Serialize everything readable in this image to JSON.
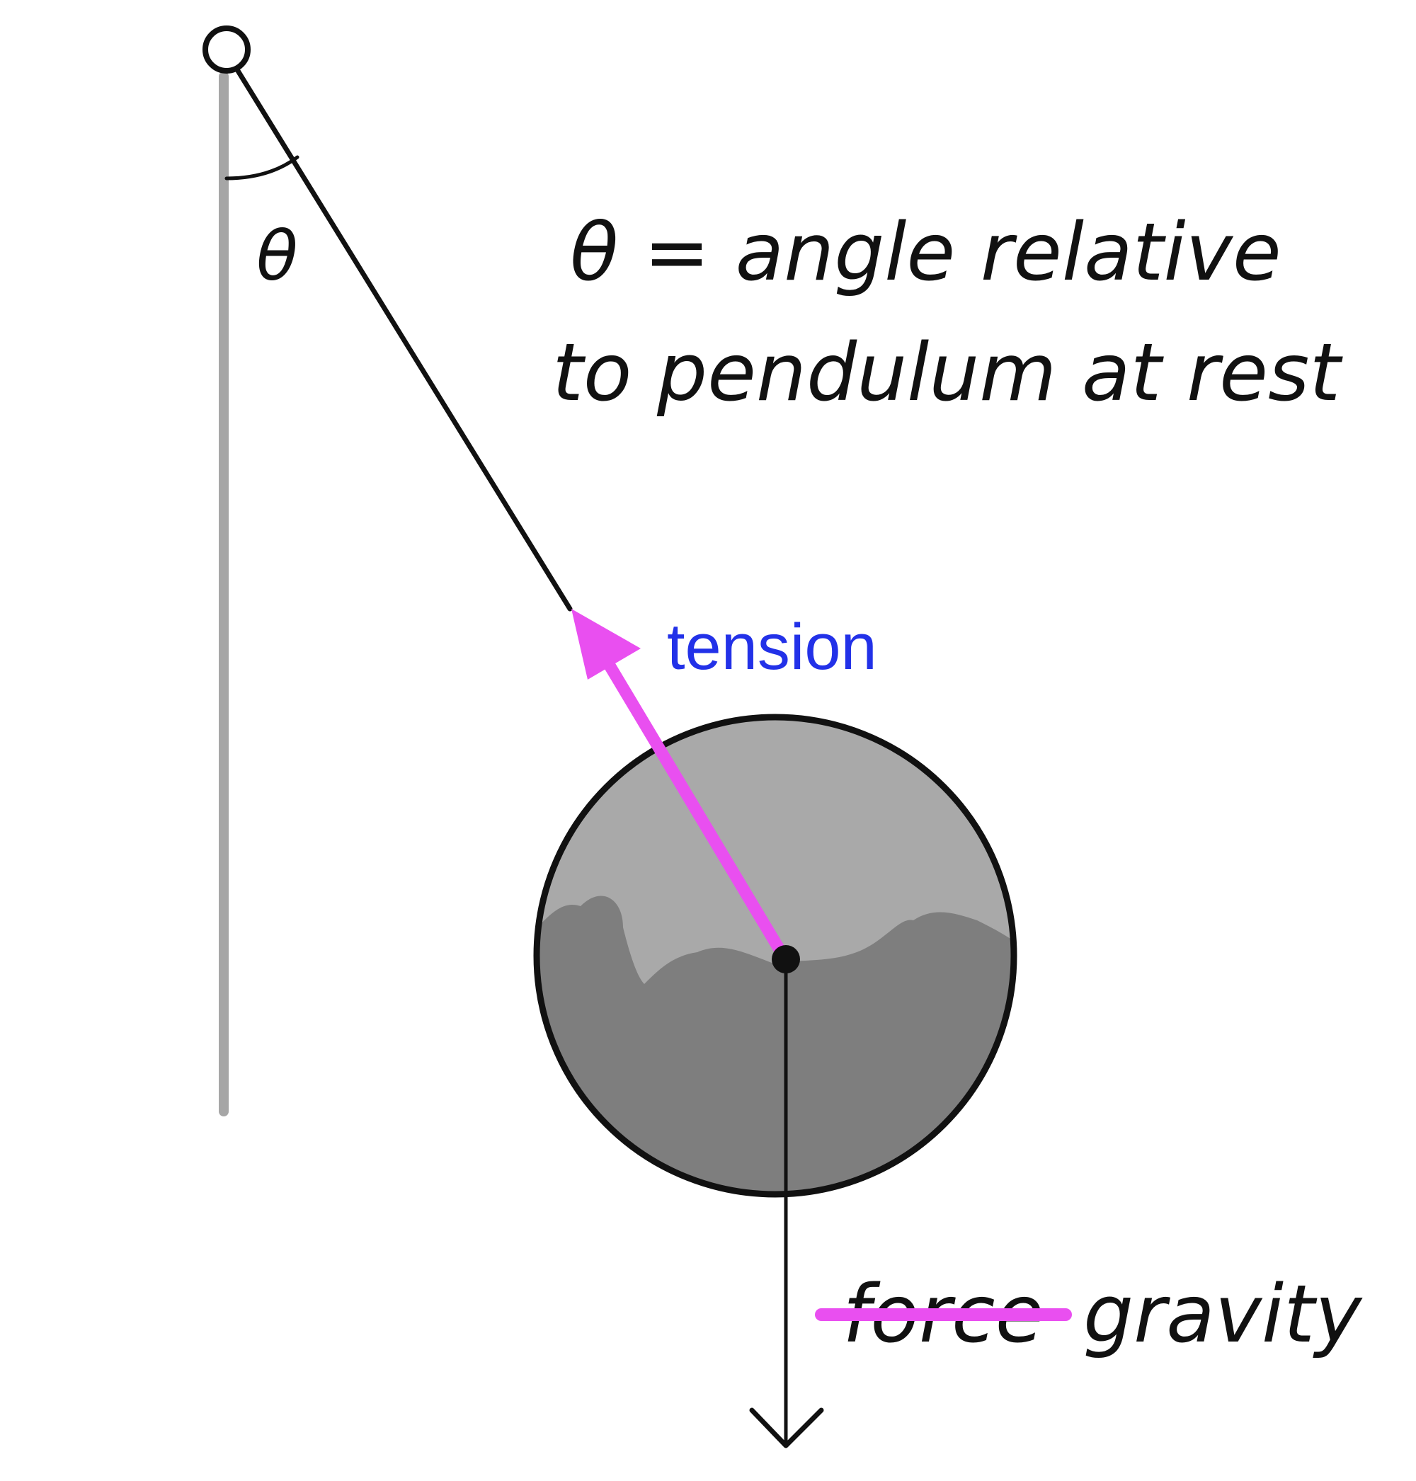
{
  "labels": {
    "theta_symbol": "θ",
    "definition_line1": "θ = angle relative",
    "definition_line2": "to pendulum at rest",
    "tension": "tension",
    "struck_word": "force",
    "gravity": "gravity"
  },
  "colors": {
    "tension_arrow": "#e94ff0",
    "tension_label": "#2231e8",
    "strike_line": "#e94ff0",
    "line": "#111111",
    "rest_line": "#a6a6a6",
    "bob_light": "#a9a9a9",
    "bob_dark": "#7e7e7e"
  }
}
